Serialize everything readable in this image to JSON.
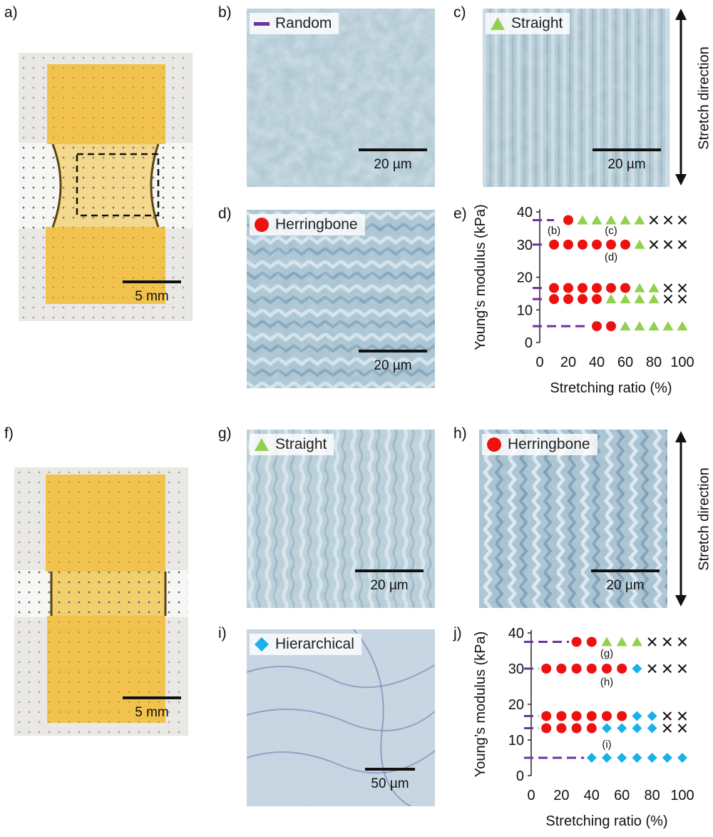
{
  "panels": {
    "a": "a)",
    "b": "b)",
    "c": "c)",
    "d": "d)",
    "e": "e)",
    "f": "f)",
    "g": "g)",
    "h": "h)",
    "i": "i)",
    "j": "j)"
  },
  "photos": {
    "a_scale": "5 mm",
    "f_scale": "5 mm"
  },
  "micrographs": {
    "b": {
      "label": "Random",
      "scale": "20 µm"
    },
    "c": {
      "label": "Straight",
      "scale": "20 µm"
    },
    "d": {
      "label": "Herringbone",
      "scale": "20 µm"
    },
    "g": {
      "label": "Straight",
      "scale": "20 µm"
    },
    "h": {
      "label": "Herringbone",
      "scale": "20 µm"
    },
    "i": {
      "label": "Hierarchical",
      "scale": "50 µm"
    }
  },
  "stretch_direction": "Stretch direction",
  "colors": {
    "random": "#7030a0",
    "straight": "#92d050",
    "herringbone": "#ee1111",
    "hierarchical": "#1ab0e8",
    "fail": "#111111"
  },
  "chart_data": [
    {
      "id": "e",
      "type": "scatter",
      "xlabel": "Stretching ratio (%)",
      "ylabel": "Young’s modulus (kPa)",
      "xlim": [
        0,
        100
      ],
      "ylim": [
        0,
        40
      ],
      "xticks": [
        0,
        20,
        40,
        60,
        80,
        100
      ],
      "yticks": [
        0,
        10,
        20,
        30,
        40
      ],
      "grid": false,
      "levels": [
        37.5,
        30,
        16.7,
        13.3,
        5
      ],
      "rows": [
        {
          "y": 37.5,
          "dash_to": 10,
          "points": [
            [
              20,
              "H"
            ],
            [
              30,
              "S"
            ],
            [
              40,
              "S"
            ],
            [
              50,
              "S"
            ],
            [
              60,
              "S"
            ],
            [
              70,
              "S"
            ],
            [
              80,
              "X"
            ],
            [
              90,
              "X"
            ],
            [
              100,
              "X"
            ]
          ]
        },
        {
          "y": 30,
          "dash_to": 5,
          "points": [
            [
              10,
              "H"
            ],
            [
              20,
              "H"
            ],
            [
              30,
              "H"
            ],
            [
              40,
              "H"
            ],
            [
              50,
              "H"
            ],
            [
              60,
              "H"
            ],
            [
              70,
              "S"
            ],
            [
              80,
              "X"
            ],
            [
              90,
              "X"
            ],
            [
              100,
              "X"
            ]
          ]
        },
        {
          "y": 16.7,
          "dash_to": 5,
          "points": [
            [
              10,
              "H"
            ],
            [
              20,
              "H"
            ],
            [
              30,
              "H"
            ],
            [
              40,
              "H"
            ],
            [
              50,
              "H"
            ],
            [
              60,
              "H"
            ],
            [
              70,
              "S"
            ],
            [
              80,
              "S"
            ],
            [
              90,
              "X"
            ],
            [
              100,
              "X"
            ]
          ]
        },
        {
          "y": 13.3,
          "dash_to": 5,
          "points": [
            [
              10,
              "H"
            ],
            [
              20,
              "H"
            ],
            [
              30,
              "H"
            ],
            [
              40,
              "H"
            ],
            [
              50,
              "S"
            ],
            [
              60,
              "S"
            ],
            [
              70,
              "S"
            ],
            [
              80,
              "S"
            ],
            [
              90,
              "X"
            ],
            [
              100,
              "X"
            ]
          ]
        },
        {
          "y": 5,
          "dash_to": 35,
          "points": [
            [
              40,
              "H"
            ],
            [
              50,
              "H"
            ],
            [
              60,
              "S"
            ],
            [
              70,
              "S"
            ],
            [
              80,
              "S"
            ],
            [
              90,
              "S"
            ],
            [
              100,
              "S"
            ]
          ]
        }
      ],
      "annotations": [
        {
          "text": "(b)",
          "x": 10,
          "y": 34.5
        },
        {
          "text": "(c)",
          "x": 50,
          "y": 34.5
        },
        {
          "text": "(d)",
          "x": 50,
          "y": 26.5
        }
      ]
    },
    {
      "id": "j",
      "type": "scatter",
      "xlabel": "Stretching ratio (%)",
      "ylabel": "Young’s modulus (kPa)",
      "xlim": [
        0,
        100
      ],
      "ylim": [
        0,
        40
      ],
      "xticks": [
        0,
        20,
        40,
        60,
        80,
        100
      ],
      "yticks": [
        0,
        10,
        20,
        30,
        40
      ],
      "grid": false,
      "levels": [
        37.5,
        30,
        16.7,
        13.3,
        5
      ],
      "rows": [
        {
          "y": 37.5,
          "dash_to": 25,
          "points": [
            [
              30,
              "H"
            ],
            [
              40,
              "H"
            ],
            [
              50,
              "S"
            ],
            [
              60,
              "S"
            ],
            [
              70,
              "S"
            ],
            [
              80,
              "X"
            ],
            [
              90,
              "X"
            ],
            [
              100,
              "X"
            ]
          ]
        },
        {
          "y": 30,
          "dash_to": 5,
          "points": [
            [
              10,
              "H"
            ],
            [
              20,
              "H"
            ],
            [
              30,
              "H"
            ],
            [
              40,
              "H"
            ],
            [
              50,
              "H"
            ],
            [
              60,
              "H"
            ],
            [
              70,
              "D"
            ],
            [
              80,
              "X"
            ],
            [
              90,
              "X"
            ],
            [
              100,
              "X"
            ]
          ]
        },
        {
          "y": 16.7,
          "dash_to": 5,
          "points": [
            [
              10,
              "H"
            ],
            [
              20,
              "H"
            ],
            [
              30,
              "H"
            ],
            [
              40,
              "H"
            ],
            [
              50,
              "H"
            ],
            [
              60,
              "H"
            ],
            [
              70,
              "D"
            ],
            [
              80,
              "D"
            ],
            [
              90,
              "X"
            ],
            [
              100,
              "X"
            ]
          ]
        },
        {
          "y": 13.3,
          "dash_to": 5,
          "points": [
            [
              10,
              "H"
            ],
            [
              20,
              "H"
            ],
            [
              30,
              "H"
            ],
            [
              40,
              "H"
            ],
            [
              50,
              "D"
            ],
            [
              60,
              "D"
            ],
            [
              70,
              "D"
            ],
            [
              80,
              "D"
            ],
            [
              90,
              "X"
            ],
            [
              100,
              "X"
            ]
          ]
        },
        {
          "y": 5,
          "dash_to": 35,
          "points": [
            [
              40,
              "D"
            ],
            [
              50,
              "D"
            ],
            [
              60,
              "D"
            ],
            [
              70,
              "D"
            ],
            [
              80,
              "D"
            ],
            [
              90,
              "D"
            ],
            [
              100,
              "D"
            ]
          ]
        }
      ],
      "annotations": [
        {
          "text": "(g)",
          "x": 50,
          "y": 34.5
        },
        {
          "text": "(h)",
          "x": 50,
          "y": 26.5
        },
        {
          "text": "(i)",
          "x": 50,
          "y": 9
        }
      ]
    }
  ]
}
